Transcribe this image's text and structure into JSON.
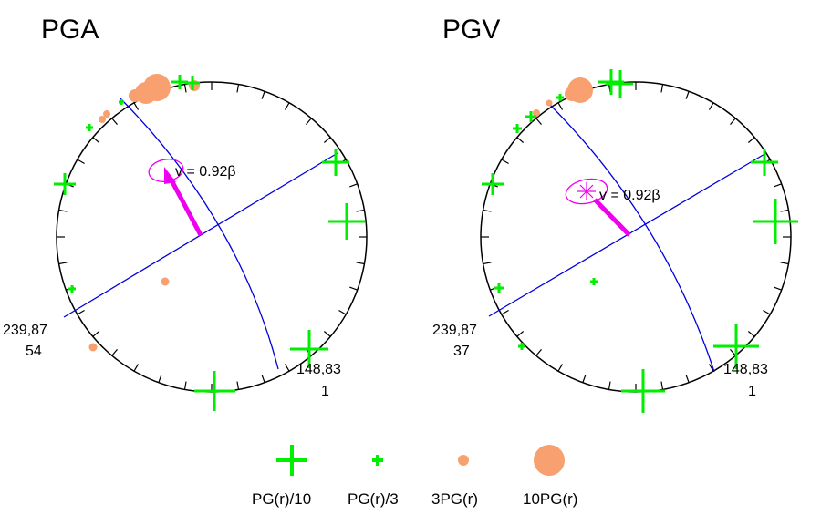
{
  "panels": [
    {
      "title": "PGA",
      "annotation": "v = 0.92β",
      "left_corner": {
        "line1": "239,87",
        "line2": "54"
      },
      "right_corner": {
        "line1": "148,83",
        "line2": "1"
      }
    },
    {
      "title": "PGV",
      "annotation": "v = 0.92β",
      "left_corner": {
        "line1": "239,87",
        "line2": "37"
      },
      "right_corner": {
        "line1": "148,83",
        "line2": "1"
      }
    }
  ],
  "legend": [
    {
      "label": "PG(r)/10",
      "symbol": "big-cross"
    },
    {
      "label": "PG(r)/3",
      "symbol": "small-cross"
    },
    {
      "label": "3PG(r)",
      "symbol": "small-dot"
    },
    {
      "label": "10PG(r)",
      "symbol": "big-dot"
    }
  ],
  "colors": {
    "cross": "#00ee00",
    "dot": "#f8a070",
    "line": "#0000dd",
    "arrow": "#ee00ee",
    "circle": "#000000"
  }
}
